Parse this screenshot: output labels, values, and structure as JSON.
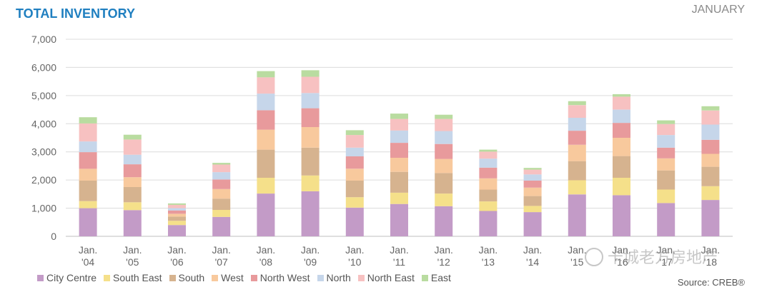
{
  "header": {
    "title": "TOTAL INVENTORY",
    "period": "JANUARY",
    "source": "Source: CREB®",
    "watermark": "卡城老方房地产"
  },
  "colors": {
    "City Centre": "#c39bc7",
    "South East": "#f5e08a",
    "South": "#d6b38f",
    "West": "#f8c99d",
    "North West": "#e89a9c",
    "North": "#c6d6ea",
    "North East": "#f7c1c1",
    "East": "#b9dca0"
  },
  "chart_data": {
    "type": "bar",
    "stacked": true,
    "title": "TOTAL INVENTORY",
    "xlabel": "",
    "ylabel": "",
    "ylim": [
      0,
      7000
    ],
    "yticks": [
      "0",
      "1,000",
      "2,000",
      "3,000",
      "4,000",
      "5,000",
      "6,000",
      "7,000"
    ],
    "grid": true,
    "legend": "bottom",
    "categories": [
      {
        "line1": "Jan.",
        "line2": "'04"
      },
      {
        "line1": "Jan.",
        "line2": "'05"
      },
      {
        "line1": "Jan.",
        "line2": "'06"
      },
      {
        "line1": "Jan.",
        "line2": "'07"
      },
      {
        "line1": "Jan.",
        "line2": "'08"
      },
      {
        "line1": "Jan.",
        "line2": "'09"
      },
      {
        "line1": "Jan.",
        "line2": "'10"
      },
      {
        "line1": "Jan.",
        "line2": "'11"
      },
      {
        "line1": "Jan.",
        "line2": "'12"
      },
      {
        "line1": "Jan.",
        "line2": "'13"
      },
      {
        "line1": "Jan.",
        "line2": "'14"
      },
      {
        "line1": "Jan.",
        "line2": "'15"
      },
      {
        "line1": "Jan.",
        "line2": "'16"
      },
      {
        "line1": "Jan.",
        "line2": "'17"
      },
      {
        "line1": "Jan.",
        "line2": "'18"
      }
    ],
    "series": [
      {
        "name": "City Centre",
        "values": [
          1000,
          930,
          400,
          690,
          1520,
          1600,
          1020,
          1150,
          1070,
          900,
          860,
          1490,
          1460,
          1180,
          1290
        ]
      },
      {
        "name": "South East",
        "values": [
          250,
          280,
          150,
          250,
          560,
          560,
          370,
          400,
          450,
          340,
          220,
          500,
          620,
          480,
          490
        ]
      },
      {
        "name": "South",
        "values": [
          730,
          540,
          150,
          400,
          1000,
          990,
          590,
          740,
          730,
          420,
          350,
          680,
          770,
          680,
          690
        ]
      },
      {
        "name": "West",
        "values": [
          420,
          350,
          100,
          340,
          710,
          730,
          420,
          500,
          500,
          400,
          300,
          580,
          650,
          430,
          460
        ]
      },
      {
        "name": "North West",
        "values": [
          590,
          460,
          120,
          340,
          690,
          670,
          440,
          530,
          530,
          380,
          250,
          500,
          530,
          380,
          500
        ]
      },
      {
        "name": "North",
        "values": [
          380,
          340,
          80,
          260,
          590,
          540,
          310,
          440,
          460,
          320,
          220,
          460,
          470,
          450,
          540
        ]
      },
      {
        "name": "North East",
        "values": [
          640,
          540,
          120,
          270,
          580,
          580,
          450,
          410,
          430,
          250,
          170,
          450,
          460,
          390,
          500
        ]
      },
      {
        "name": "East",
        "values": [
          220,
          170,
          50,
          60,
          220,
          230,
          170,
          190,
          150,
          70,
          60,
          140,
          90,
          130,
          150
        ]
      }
    ]
  }
}
